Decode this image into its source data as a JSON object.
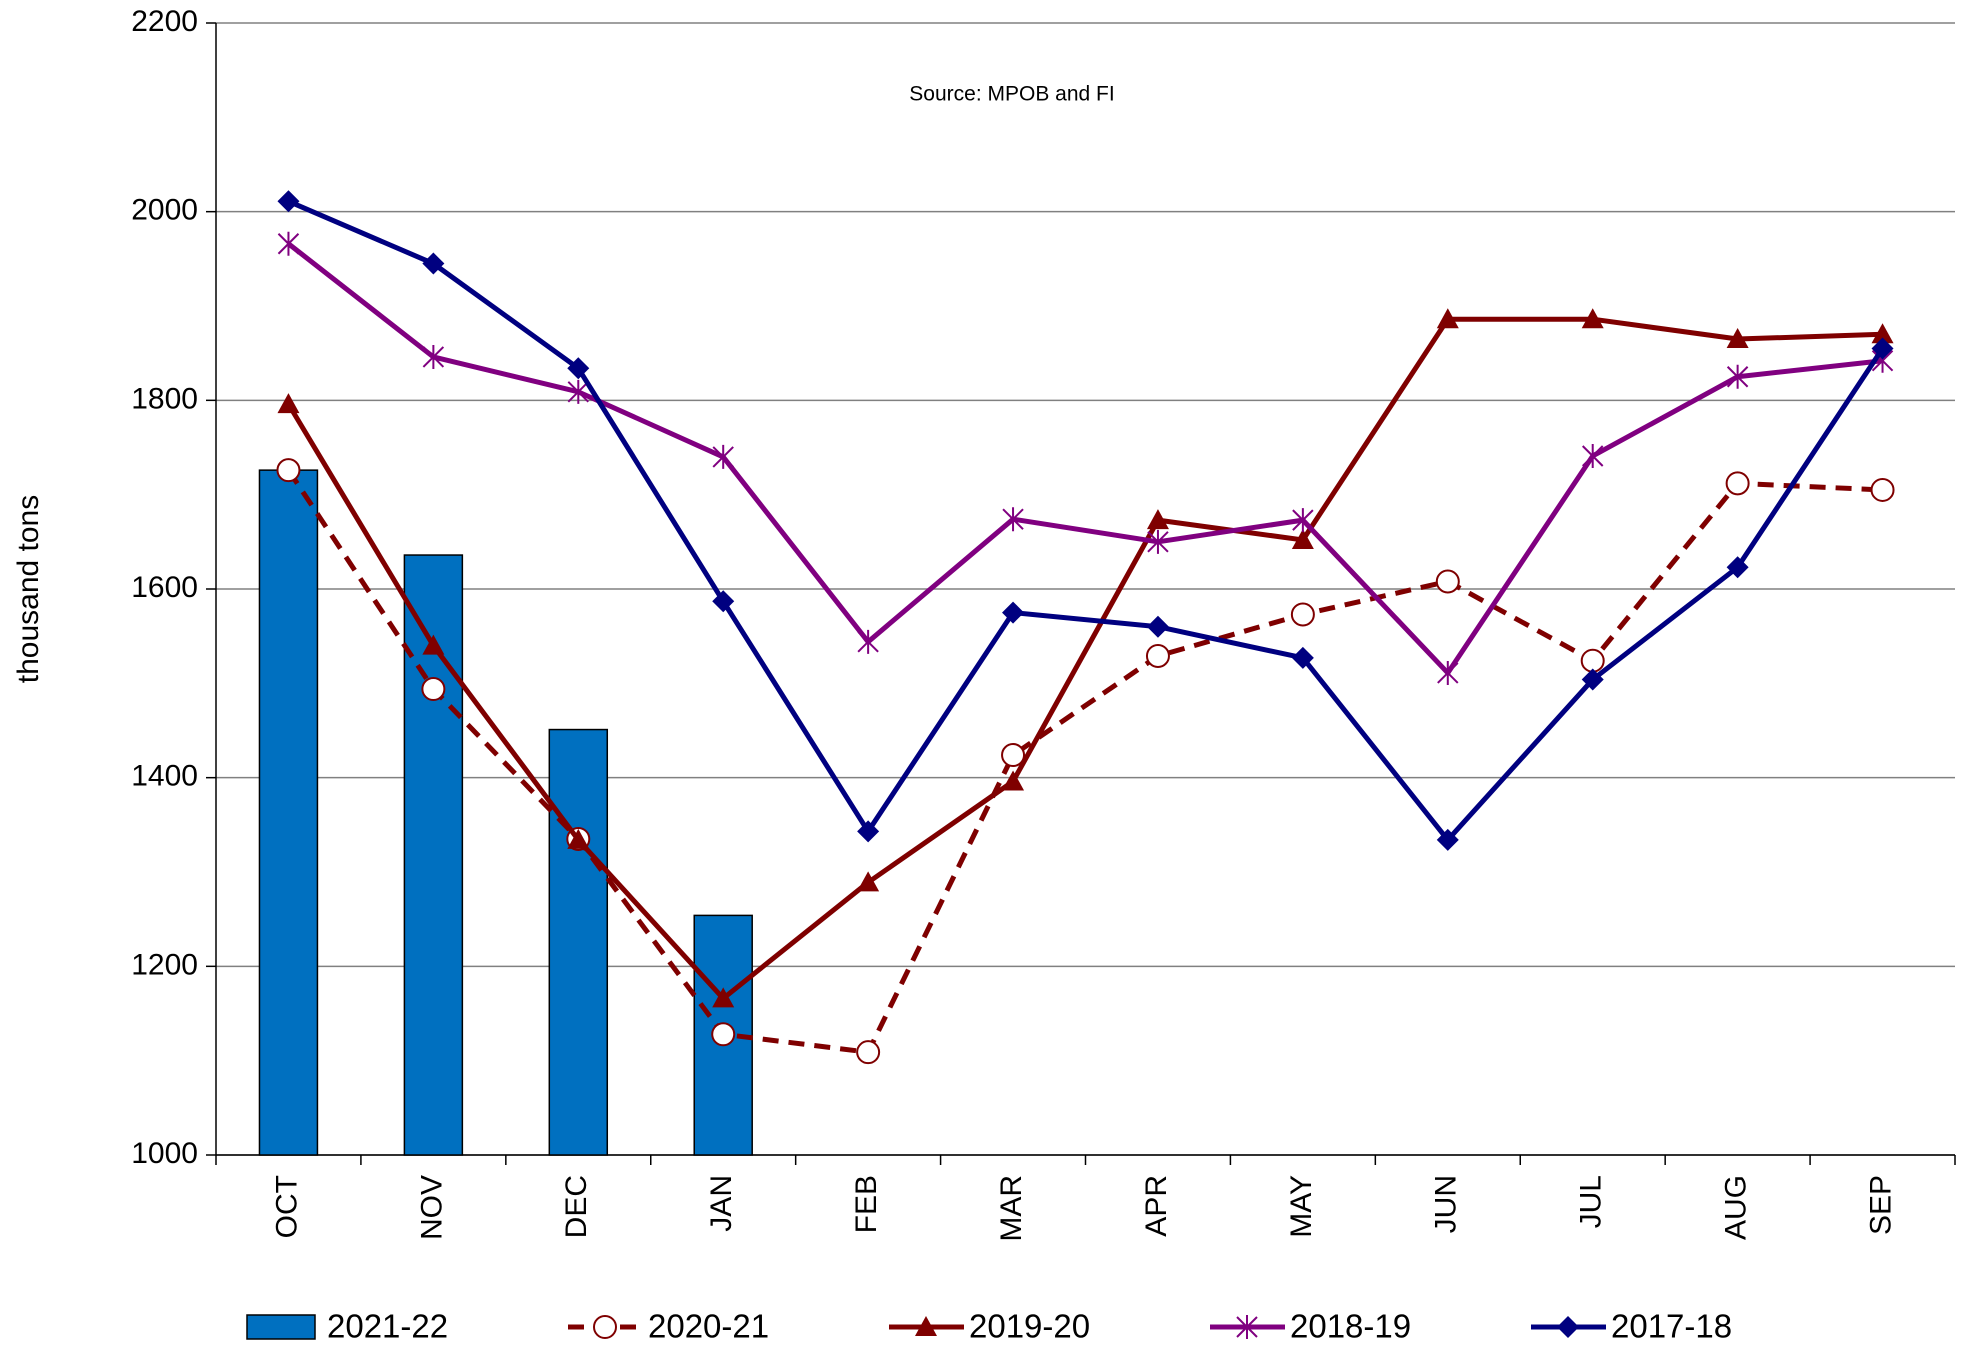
{
  "chart_data": {
    "type": "bar_line",
    "annotation": "Source: MPOB and FI",
    "y_label": "thousand tons",
    "categories": [
      "OCT",
      "NOV",
      "DEC",
      "JAN",
      "FEB",
      "MAR",
      "APR",
      "MAY",
      "JUN",
      "JUL",
      "AUG",
      "SEP"
    ],
    "ylim": [
      1000,
      2200
    ],
    "yticks": [
      1000,
      1200,
      1400,
      1600,
      1800,
      2000,
      2200
    ],
    "grid": true,
    "series": [
      {
        "name": "2021-22",
        "type": "bar",
        "color": "#0070c0",
        "values": [
          1726,
          1636,
          1451,
          1254,
          null,
          null,
          null,
          null,
          null,
          null,
          null,
          null
        ]
      },
      {
        "name": "2020-21",
        "type": "line",
        "color": "#7f0000",
        "dash": true,
        "marker": "circle",
        "values": [
          1726,
          1494,
          1335,
          1128,
          1109,
          1424,
          1529,
          1573,
          1608,
          1524,
          1712,
          1705
        ]
      },
      {
        "name": "2019-20",
        "type": "line",
        "color": "#7f0000",
        "dash": false,
        "marker": "triangle",
        "values": [
          1796,
          1540,
          1334,
          1166,
          1289,
          1396,
          1673,
          1652,
          1886,
          1886,
          1865,
          1870
        ]
      },
      {
        "name": "2018-19",
        "type": "line",
        "color": "#800080",
        "dash": false,
        "marker": "star",
        "values": [
          1966,
          1846,
          1809,
          1740,
          1544,
          1674,
          1650,
          1673,
          1511,
          1741,
          1825,
          1842
        ]
      },
      {
        "name": "2017-18",
        "type": "line",
        "color": "#000080",
        "dash": false,
        "marker": "diamond",
        "values": [
          2011,
          1945,
          1834,
          1587,
          1343,
          1575,
          1560,
          1527,
          1334,
          1504,
          1623,
          1855
        ]
      }
    ]
  }
}
